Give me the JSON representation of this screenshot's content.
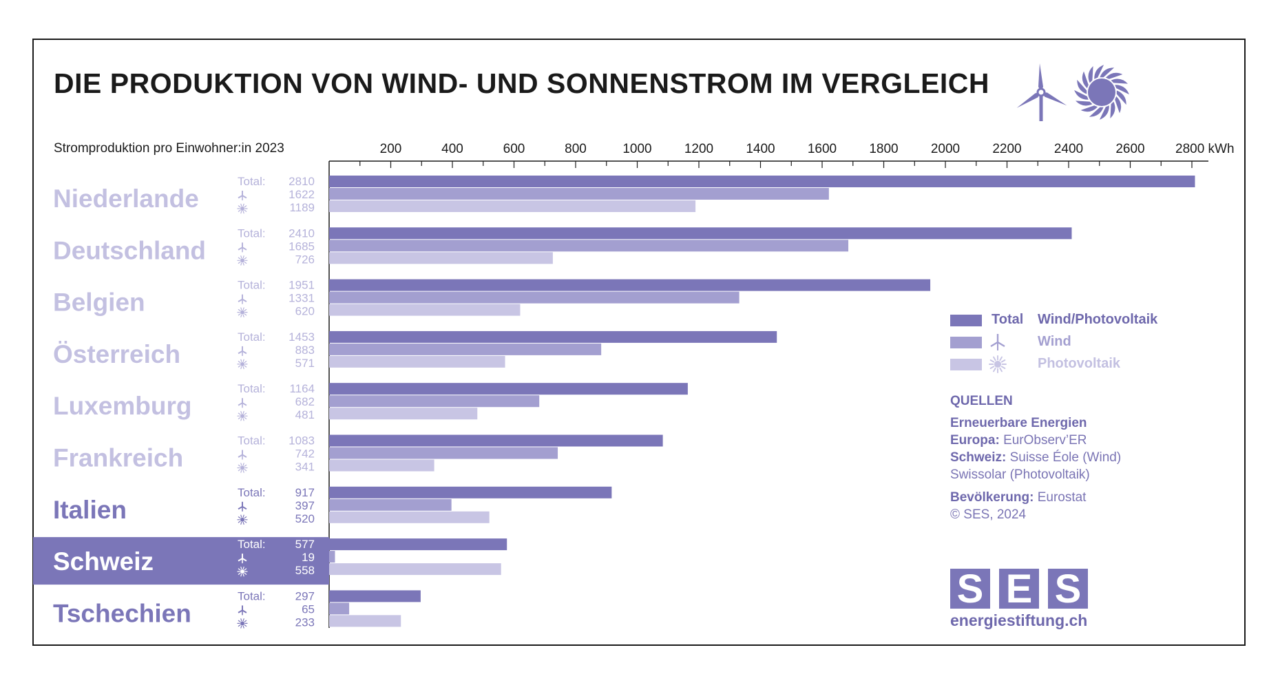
{
  "title": "DIE PRODUKTION VON WIND- UND SONNENSTROM IM VERGLEICH",
  "subtitle": "Stromproduktion pro Einwohner:in 2023",
  "colors": {
    "total": "#7b76b8",
    "wind": "#a39fd0",
    "pv": "#c8c5e4",
    "country_label": "#c3c0e1",
    "highlight_bg": "#7b76b8",
    "numbers": "#b5b2da",
    "numbers_highlight": "#ffffff"
  },
  "icons": {
    "header": [
      "wind-turbine-icon",
      "sun-icon"
    ],
    "wind_row": "wind-turbine-icon",
    "pv_row": "sun-icon"
  },
  "chart_data": {
    "type": "bar",
    "orientation": "horizontal",
    "unit": "kWh",
    "xlim": [
      0,
      2900
    ],
    "xticks": [
      200,
      400,
      600,
      800,
      1000,
      1200,
      1400,
      1600,
      1800,
      2000,
      2200,
      2400,
      2600,
      2800
    ],
    "xtick_labels": [
      "200",
      "400",
      "600",
      "800",
      "1000",
      "1200",
      "1400",
      "1600",
      "1800",
      "2000",
      "2200",
      "2400",
      "2600",
      "2800 kWh"
    ],
    "total_prefix": "Total:",
    "categories": [
      "Niederlande",
      "Deutschland",
      "Belgien",
      "Österreich",
      "Luxemburg",
      "Frankreich",
      "Italien",
      "Schweiz",
      "Tschechien"
    ],
    "highlighted": "Schweiz",
    "series": [
      {
        "name": "Total",
        "values": [
          2810,
          2410,
          1951,
          1453,
          1164,
          1083,
          917,
          577,
          297
        ]
      },
      {
        "name": "Wind",
        "values": [
          1622,
          1685,
          1331,
          883,
          682,
          742,
          397,
          19,
          65
        ]
      },
      {
        "name": "Photovoltaik",
        "values": [
          1189,
          726,
          620,
          571,
          481,
          341,
          520,
          558,
          233
        ]
      }
    ],
    "legend": {
      "placement": "right",
      "items": [
        {
          "label": "Total",
          "text": "Wind/Photovoltaik"
        },
        {
          "label": "",
          "text": "Wind"
        },
        {
          "label": "",
          "text": "Photovoltaik"
        }
      ]
    }
  },
  "sources": {
    "heading": "QUELLEN",
    "line1_bold": "Erneuerbare Energien",
    "line2_bold": "Europa:",
    "line2_text": "EurObserv’ER",
    "line3_bold": "Schweiz:",
    "line3_text": "Suisse Éole (Wind)",
    "line4_text": "Swissolar (Photovoltaik)",
    "line5_bold": "Bevölkerung:",
    "line5_text": "Eurostat",
    "line6_text": "© SES, 2024"
  },
  "logo": {
    "letters": [
      "S",
      "E",
      "S"
    ],
    "url": "energiestiftung.ch"
  }
}
